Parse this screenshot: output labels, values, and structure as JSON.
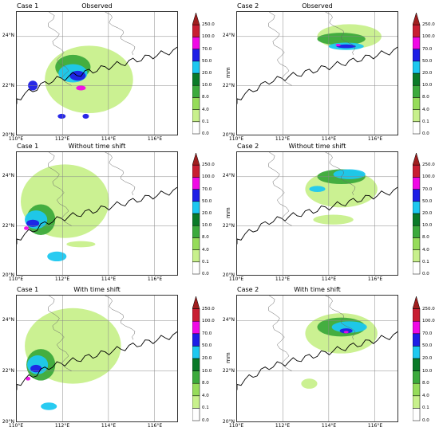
{
  "panels": [
    {
      "case": "Case 1",
      "title": "Observed"
    },
    {
      "case": "Case 2",
      "title": "Observed"
    },
    {
      "case": "Case 1",
      "title": "Without time shift"
    },
    {
      "case": "Case 2",
      "title": "Without time shift"
    },
    {
      "case": "Case 1",
      "title": "With time shift"
    },
    {
      "case": "Case 2",
      "title": "With time shift"
    }
  ],
  "lat_ticks": [
    "20°N",
    "22°N",
    "24°N"
  ],
  "lon_ticks": [
    "110°E",
    "112°E",
    "114°E",
    "116°E"
  ],
  "colorbar": {
    "unit": "mm",
    "levels": [
      "0.0",
      "0.1",
      "4.0",
      "8.0",
      "10.0",
      "20.0",
      "50.0",
      "70.0",
      "100.0",
      "250.0"
    ],
    "colors": [
      "#ffffff",
      "#c8f08c",
      "#96dc5a",
      "#3caa3c",
      "#0a7a28",
      "#1ec8f0",
      "#1e1ee6",
      "#f00ae6",
      "#c81e32",
      "#a01e1e"
    ]
  }
}
